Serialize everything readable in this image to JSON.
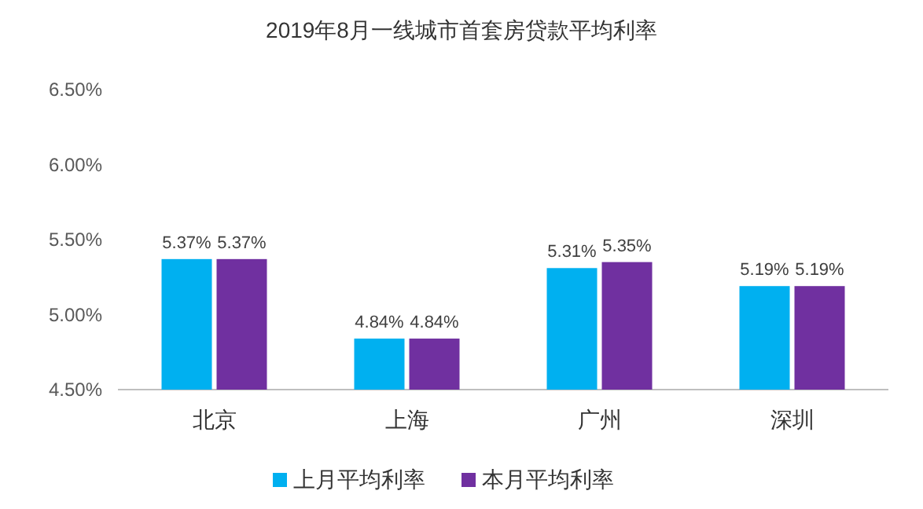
{
  "chart_data": {
    "type": "bar",
    "title": "2019年8月一线城市首套房贷款平均利率",
    "categories": [
      "北京",
      "上海",
      "广州",
      "深圳"
    ],
    "series": [
      {
        "name": "上月平均利率",
        "color": "#00b0f0",
        "values": [
          5.37,
          4.84,
          5.31,
          5.19
        ],
        "value_labels": [
          "5.37%",
          "4.84%",
          "5.31%",
          "5.19%"
        ]
      },
      {
        "name": "本月平均利率",
        "color": "#7030a0",
        "values": [
          5.37,
          4.84,
          5.35,
          5.19
        ],
        "value_labels": [
          "5.37%",
          "4.84%",
          "5.35%",
          "5.19%"
        ]
      }
    ],
    "ylim": [
      4.5,
      6.5
    ],
    "yticks": [
      {
        "value": 4.5,
        "label": "4.50%"
      },
      {
        "value": 5.0,
        "label": "5.00%"
      },
      {
        "value": 5.5,
        "label": "5.50%"
      },
      {
        "value": 6.0,
        "label": "6.00%"
      },
      {
        "value": 6.5,
        "label": "6.50%"
      }
    ],
    "legend": "bottom"
  }
}
